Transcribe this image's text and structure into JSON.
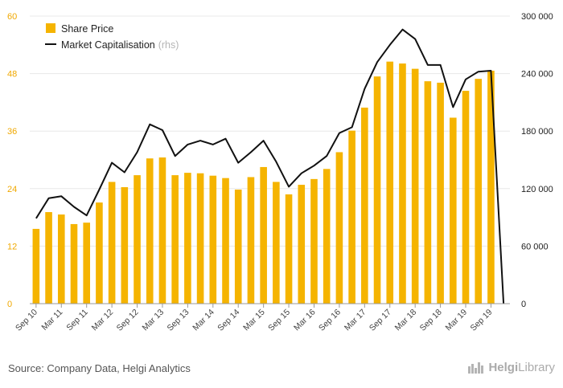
{
  "chart_data": {
    "type": "bar",
    "categories": [
      "Sep 10",
      "Dec 10",
      "Mar 11",
      "Jun 11",
      "Sep 11",
      "Dec 11",
      "Mar 12",
      "Jun 12",
      "Sep 12",
      "Dec 12",
      "Mar 13",
      "Jun 13",
      "Sep 13",
      "Dec 13",
      "Mar 14",
      "Jun 14",
      "Sep 14",
      "Dec 14",
      "Mar 15",
      "Jun 15",
      "Sep 15",
      "Dec 15",
      "Mar 16",
      "Jun 16",
      "Sep 16",
      "Dec 16",
      "Mar 17",
      "Jun 17",
      "Sep 17",
      "Dec 17",
      "Mar 18",
      "Jun 18",
      "Sep 18",
      "Dec 18",
      "Mar 19",
      "Jun 19",
      "Sep 19",
      "Dec 19"
    ],
    "x_tick_labels": [
      "Sep 10",
      "Mar 11",
      "Sep 11",
      "Mar 12",
      "Sep 12",
      "Mar 13",
      "Sep 13",
      "Mar 14",
      "Sep 14",
      "Mar 15",
      "Sep 15",
      "Mar 16",
      "Sep 16",
      "Mar 17",
      "Sep 17",
      "Mar 18",
      "Sep 18",
      "Mar 19",
      "Sep 19"
    ],
    "series": [
      {
        "name": "Share Price",
        "type": "bar",
        "axis": "left",
        "color": "#f5b400",
        "values": [
          15.6,
          19.1,
          18.6,
          16.6,
          16.9,
          21.1,
          25.4,
          24.3,
          26.8,
          30.3,
          30.5,
          26.8,
          27.3,
          27.2,
          26.7,
          26.2,
          23.8,
          26.4,
          28.5,
          25.4,
          22.8,
          24.8,
          26.0,
          28.1,
          31.6,
          36.1,
          40.9,
          47.4,
          50.5,
          50.1,
          49.0,
          46.4,
          46.1,
          38.8,
          44.4,
          46.9,
          48.6,
          null
        ]
      },
      {
        "name": "Market Capitalisation",
        "type": "line",
        "axis": "right",
        "color": "#111111",
        "values": [
          89000,
          110000,
          112000,
          101000,
          92000,
          119000,
          147000,
          137000,
          158000,
          187000,
          181000,
          154000,
          166000,
          170000,
          166000,
          172000,
          147000,
          158000,
          170000,
          148000,
          122000,
          136000,
          144000,
          154000,
          178000,
          184000,
          224000,
          252000,
          270000,
          286000,
          276000,
          249000,
          249000,
          205000,
          234000,
          242000,
          243000,
          0
        ]
      }
    ],
    "y_left": {
      "min": 0,
      "max": 60,
      "ticks": [
        "0",
        "12",
        "24",
        "36",
        "48",
        "60"
      ]
    },
    "y_right": {
      "min": 0,
      "max": 300000,
      "ticks": [
        "0",
        "60 000",
        "120 000",
        "180 000",
        "240 000",
        "300 000"
      ]
    },
    "grid": true,
    "legend": {
      "position": "top-left",
      "share_price": "Share Price",
      "market_cap": "Market Capitalisation",
      "rhs_note": "(rhs)"
    }
  },
  "footer": {
    "source": "Source: Company Data, Helgi Analytics",
    "logo_brand": "Helgi",
    "logo_suffix": "Library"
  }
}
